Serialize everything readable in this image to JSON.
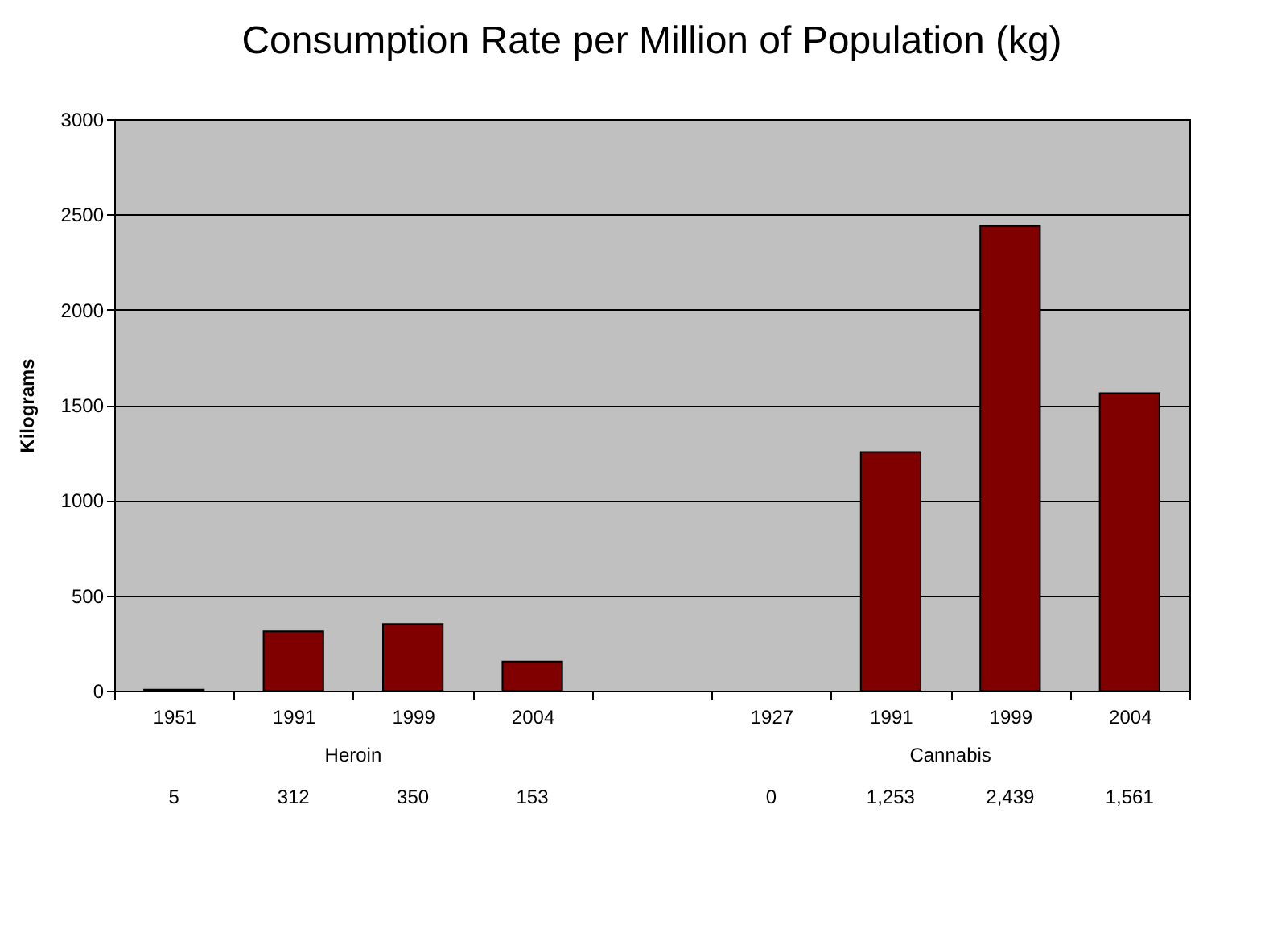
{
  "chart_data": {
    "type": "bar",
    "title": "Consumption Rate per Million of Population (kg)",
    "ylabel": "Kilograms",
    "categories": [
      "1951",
      "1991",
      "1999",
      "2004",
      null,
      "1927",
      "1991",
      "1999",
      "2004"
    ],
    "values": [
      5,
      312,
      350,
      153,
      null,
      0,
      1253,
      2439,
      1561
    ],
    "value_labels": [
      "5",
      "312",
      "350",
      "153",
      null,
      "0",
      "1,253",
      "2,439",
      "1,561"
    ],
    "color": "#800000",
    "annotations": [
      "Heroin",
      "Cannabis"
    ],
    "ylim": [
      0,
      3000
    ],
    "yticks": [
      0,
      500,
      1000,
      1500,
      2000,
      2500,
      3000
    ],
    "grid": "y"
  }
}
